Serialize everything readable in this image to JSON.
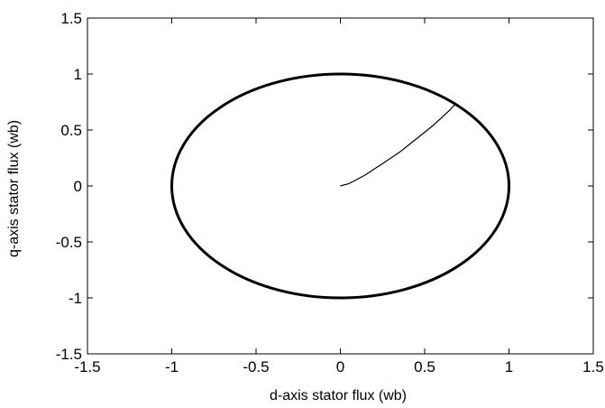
{
  "chart_data": {
    "type": "line",
    "title": "",
    "xlabel": "d-axis stator flux (wb)",
    "ylabel": "q-axis stator flux (wb)",
    "xlim": [
      -1.5,
      1.5
    ],
    "ylim": [
      -1.5,
      1.5
    ],
    "xticks": [
      -1.5,
      -1,
      -0.5,
      0,
      0.5,
      1,
      1.5
    ],
    "yticks": [
      -1.5,
      -1,
      -0.5,
      0,
      0.5,
      1,
      1.5
    ],
    "xtick_labels": [
      "-1.5",
      "-1",
      "-0.5",
      "0",
      "0.5",
      "1",
      "1.5"
    ],
    "ytick_labels": [
      "-1.5",
      "-1",
      "-0.5",
      "0",
      "0.5",
      "1",
      "1.5"
    ],
    "grid": false,
    "legend": "none",
    "series": [
      {
        "description": "transient flux trajectory from origin to circle",
        "color": "#000000",
        "x": [
          0,
          0.05,
          0.1,
          0.15,
          0.2,
          0.25,
          0.3,
          0.35,
          0.4,
          0.45,
          0.5,
          0.55,
          0.6,
          0.65,
          0.68
        ],
        "y": [
          0,
          0.02,
          0.06,
          0.1,
          0.15,
          0.2,
          0.25,
          0.3,
          0.36,
          0.42,
          0.48,
          0.54,
          0.61,
          0.68,
          0.73
        ]
      },
      {
        "description": "steady-state flux circle",
        "color": "#000000",
        "shape": "circle",
        "center": [
          0,
          0
        ],
        "radius": 1
      }
    ]
  }
}
